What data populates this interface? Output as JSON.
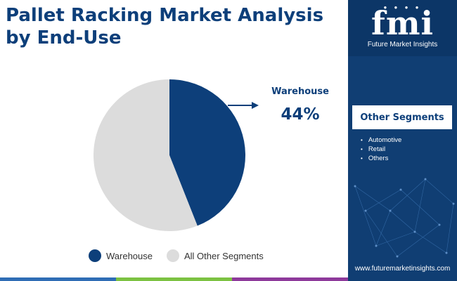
{
  "chart_data": {
    "type": "pie",
    "title": "Pallet Racking Market Analysis by End-Use",
    "slices": [
      {
        "name": "Warehouse",
        "value": 44,
        "color": "#0d3f7a"
      },
      {
        "name": "All Other Segments",
        "value": 56,
        "color": "#dcdcdc"
      }
    ],
    "callout": {
      "label": "Warehouse",
      "value": "44%"
    },
    "legend_position": "bottom"
  },
  "sidebar": {
    "logo_text": "fmi",
    "logo_subtitle": "Future Market Insights",
    "other_segments_title": "Other Segments",
    "other_segments": [
      "Automotive",
      "Retail",
      "Others"
    ],
    "website": "www.futuremarketinsights.com"
  },
  "colors": {
    "accent": "#0d3f7a",
    "sidebar_bg": "#103e73",
    "bottom_bar": [
      "#2f6db5",
      "#7cc242",
      "#8e3a9b",
      "#e0473b"
    ]
  }
}
